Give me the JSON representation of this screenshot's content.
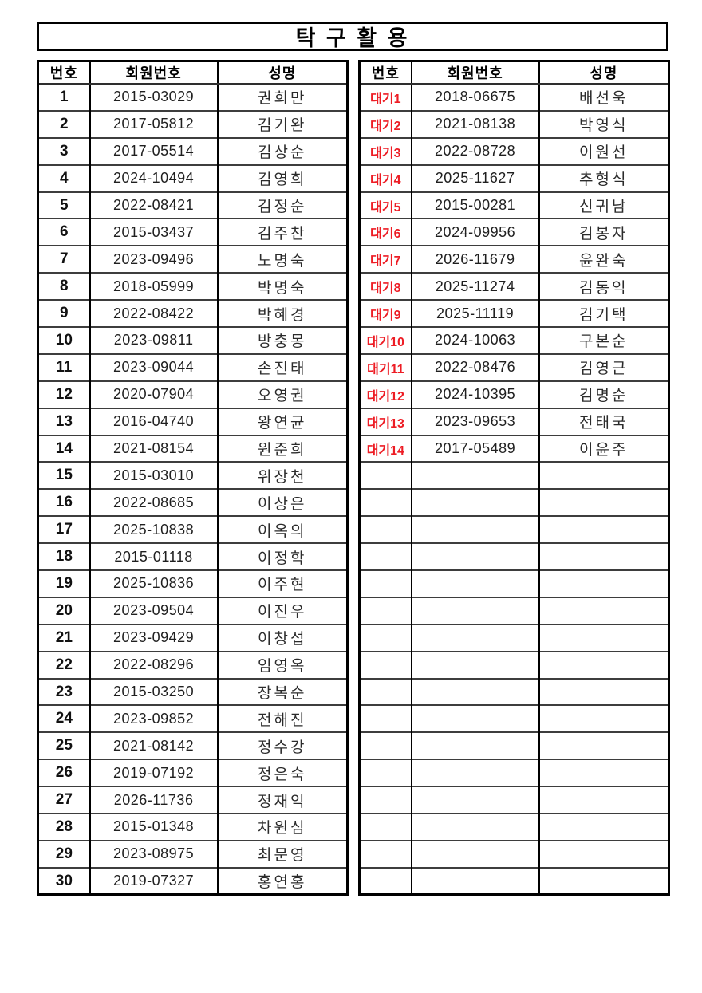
{
  "title": "탁 구 활 용",
  "columns": [
    "번호",
    "회원번호",
    "성명"
  ],
  "colors": {
    "waiting_red": "#ed1c24",
    "border_black": "#000000"
  },
  "left_table": {
    "rows": [
      {
        "no": "1",
        "id": "2015-03029",
        "name": "권희만"
      },
      {
        "no": "2",
        "id": "2017-05812",
        "name": "김기완"
      },
      {
        "no": "3",
        "id": "2017-05514",
        "name": "김상순"
      },
      {
        "no": "4",
        "id": "2024-10494",
        "name": "김영희"
      },
      {
        "no": "5",
        "id": "2022-08421",
        "name": "김정순"
      },
      {
        "no": "6",
        "id": "2015-03437",
        "name": "김주찬"
      },
      {
        "no": "7",
        "id": "2023-09496",
        "name": "노명숙"
      },
      {
        "no": "8",
        "id": "2018-05999",
        "name": "박명숙"
      },
      {
        "no": "9",
        "id": "2022-08422",
        "name": "박혜경"
      },
      {
        "no": "10",
        "id": "2023-09811",
        "name": "방충몽"
      },
      {
        "no": "11",
        "id": "2023-09044",
        "name": "손진태"
      },
      {
        "no": "12",
        "id": "2020-07904",
        "name": "오영권"
      },
      {
        "no": "13",
        "id": "2016-04740",
        "name": "왕연균"
      },
      {
        "no": "14",
        "id": "2021-08154",
        "name": "원준희"
      },
      {
        "no": "15",
        "id": "2015-03010",
        "name": "위장천"
      },
      {
        "no": "16",
        "id": "2022-08685",
        "name": "이상은"
      },
      {
        "no": "17",
        "id": "2025-10838",
        "name": "이옥의"
      },
      {
        "no": "18",
        "id": "2015-01118",
        "name": "이정학"
      },
      {
        "no": "19",
        "id": "2025-10836",
        "name": "이주현"
      },
      {
        "no": "20",
        "id": "2023-09504",
        "name": "이진우"
      },
      {
        "no": "21",
        "id": "2023-09429",
        "name": "이창섭"
      },
      {
        "no": "22",
        "id": "2022-08296",
        "name": "임영옥"
      },
      {
        "no": "23",
        "id": "2015-03250",
        "name": "장복순"
      },
      {
        "no": "24",
        "id": "2023-09852",
        "name": "전해진"
      },
      {
        "no": "25",
        "id": "2021-08142",
        "name": "정수강"
      },
      {
        "no": "26",
        "id": "2019-07192",
        "name": "정은숙"
      },
      {
        "no": "27",
        "id": "2026-11736",
        "name": "정재익"
      },
      {
        "no": "28",
        "id": "2015-01348",
        "name": "차원심"
      },
      {
        "no": "29",
        "id": "2023-08975",
        "name": "최문영"
      },
      {
        "no": "30",
        "id": "2019-07327",
        "name": "홍연홍"
      }
    ],
    "empty_rows": 0
  },
  "right_table": {
    "rows": [
      {
        "no": "대기1",
        "id": "2018-06675",
        "name": "배선욱",
        "red": true
      },
      {
        "no": "대기2",
        "id": "2021-08138",
        "name": "박영식",
        "red": true
      },
      {
        "no": "대기3",
        "id": "2022-08728",
        "name": "이원선",
        "red": true
      },
      {
        "no": "대기4",
        "id": "2025-11627",
        "name": "추형식",
        "red": true
      },
      {
        "no": "대기5",
        "id": "2015-00281",
        "name": "신귀남",
        "red": true
      },
      {
        "no": "대기6",
        "id": "2024-09956",
        "name": "김봉자",
        "red": true
      },
      {
        "no": "대기7",
        "id": "2026-11679",
        "name": "윤완숙",
        "red": true
      },
      {
        "no": "대기8",
        "id": "2025-11274",
        "name": "김동익",
        "red": true
      },
      {
        "no": "대기9",
        "id": "2025-11119",
        "name": "김기택",
        "red": true
      },
      {
        "no": "대기10",
        "id": "2024-10063",
        "name": "구본순",
        "red": true
      },
      {
        "no": "대기11",
        "id": "2022-08476",
        "name": "김영근",
        "red": true
      },
      {
        "no": "대기12",
        "id": "2024-10395",
        "name": "김명순",
        "red": true
      },
      {
        "no": "대기13",
        "id": "2023-09653",
        "name": "전태국",
        "red": true
      },
      {
        "no": "대기14",
        "id": "2017-05489",
        "name": "이윤주",
        "red": true
      }
    ],
    "empty_rows": 16
  }
}
